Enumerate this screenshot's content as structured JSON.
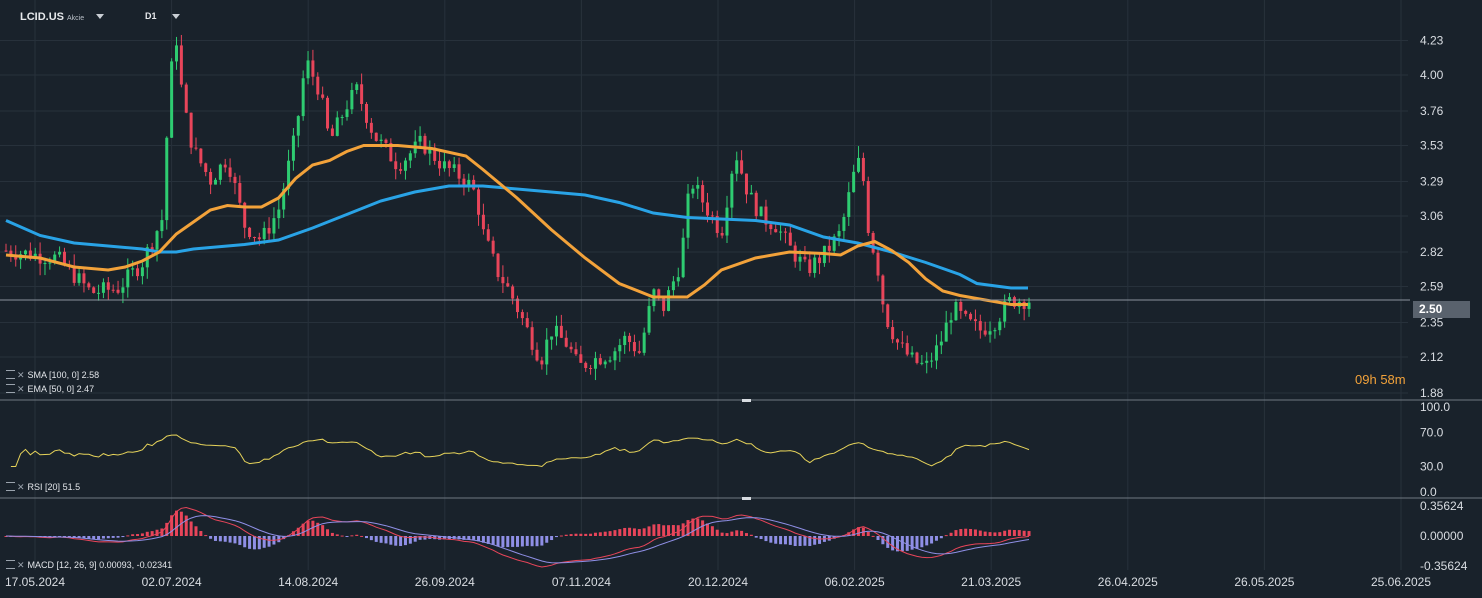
{
  "header": {
    "symbol": "LCID.US",
    "instrument_type": "Akcie",
    "timeframe": "D1"
  },
  "price_panel": {
    "y_ticks": [
      "4.23",
      "4.00",
      "3.76",
      "3.53",
      "3.29",
      "3.06",
      "2.82",
      "2.59",
      "2.35",
      "2.12",
      "1.88"
    ],
    "current_price": "2.50",
    "countdown_hours": "09",
    "countdown_h_unit": "h",
    "countdown_minutes": "58",
    "countdown_m_unit": "m",
    "indicators": [
      {
        "label": "SMA [100, 0] 2.58",
        "color": "#29a3e6"
      },
      {
        "label": "EMA [50, 0] 2.47",
        "color": "#f2a23a"
      }
    ]
  },
  "rsi_panel": {
    "label": "RSI [20] 51.5",
    "y_ticks": [
      "100.0",
      "70.0",
      "30.0",
      "0.0"
    ],
    "color": "#e6d35a"
  },
  "macd_panel": {
    "label": "MACD [12, 26, 9] 0.00093, -0.02341",
    "y_ticks": [
      "0.35624",
      "0.00000",
      "-0.35624"
    ]
  },
  "x_axis": {
    "ticks": [
      "17.05.2024",
      "02.07.2024",
      "14.08.2024",
      "26.09.2024",
      "07.11.2024",
      "20.12.2024",
      "06.02.2025",
      "21.03.2025",
      "26.04.2025",
      "26.05.2025",
      "25.06.2025"
    ]
  },
  "colors": {
    "background": "#19222b",
    "bull": "#2ecc71",
    "bear": "#e8455a",
    "sma": "#29a3e6",
    "ema": "#f2a23a",
    "rsi": "#e6d35a",
    "macd_line": "#e8455a",
    "signal_line": "#8f8fe6",
    "hist_pos": "#e8455a",
    "hist_neg": "#8f8fe6"
  },
  "chart_data": {
    "type": "candlestick",
    "price_range": [
      1.88,
      4.32
    ],
    "rsi_range": [
      0,
      100
    ],
    "macd_range": [
      -0.4,
      0.4
    ],
    "current_price": 2.5,
    "sma_100": [
      [
        0,
        3.03
      ],
      [
        10,
        2.93
      ],
      [
        20,
        2.88
      ],
      [
        30,
        2.86
      ],
      [
        40,
        2.84
      ],
      [
        45,
        2.82
      ],
      [
        50,
        2.82
      ],
      [
        55,
        2.84
      ],
      [
        60,
        2.85
      ],
      [
        70,
        2.87
      ],
      [
        80,
        2.9
      ],
      [
        90,
        2.98
      ],
      [
        100,
        3.07
      ],
      [
        110,
        3.16
      ],
      [
        120,
        3.22
      ],
      [
        130,
        3.26
      ],
      [
        140,
        3.26
      ],
      [
        150,
        3.24
      ],
      [
        160,
        3.22
      ],
      [
        170,
        3.2
      ],
      [
        180,
        3.15
      ],
      [
        190,
        3.08
      ],
      [
        200,
        3.05
      ],
      [
        210,
        3.04
      ],
      [
        220,
        3.03
      ],
      [
        230,
        3.0
      ],
      [
        240,
        2.92
      ],
      [
        250,
        2.88
      ],
      [
        260,
        2.82
      ],
      [
        270,
        2.75
      ],
      [
        280,
        2.67
      ],
      [
        285,
        2.61
      ],
      [
        295,
        2.58
      ],
      [
        300,
        2.58
      ]
    ],
    "ema_50": [
      [
        0,
        2.8
      ],
      [
        10,
        2.78
      ],
      [
        20,
        2.72
      ],
      [
        30,
        2.7
      ],
      [
        35,
        2.72
      ],
      [
        40,
        2.76
      ],
      [
        45,
        2.82
      ],
      [
        50,
        2.94
      ],
      [
        55,
        3.02
      ],
      [
        60,
        3.1
      ],
      [
        65,
        3.13
      ],
      [
        70,
        3.12
      ],
      [
        75,
        3.12
      ],
      [
        80,
        3.18
      ],
      [
        85,
        3.31
      ],
      [
        90,
        3.4
      ],
      [
        95,
        3.43
      ],
      [
        100,
        3.49
      ],
      [
        105,
        3.53
      ],
      [
        115,
        3.53
      ],
      [
        125,
        3.51
      ],
      [
        135,
        3.46
      ],
      [
        140,
        3.37
      ],
      [
        150,
        3.18
      ],
      [
        160,
        2.97
      ],
      [
        170,
        2.78
      ],
      [
        180,
        2.61
      ],
      [
        190,
        2.52
      ],
      [
        195,
        2.52
      ],
      [
        200,
        2.52
      ],
      [
        205,
        2.6
      ],
      [
        210,
        2.7
      ],
      [
        220,
        2.78
      ],
      [
        230,
        2.82
      ],
      [
        240,
        2.81
      ],
      [
        245,
        2.8
      ],
      [
        250,
        2.86
      ],
      [
        255,
        2.89
      ],
      [
        260,
        2.83
      ],
      [
        265,
        2.75
      ],
      [
        270,
        2.64
      ],
      [
        275,
        2.56
      ],
      [
        280,
        2.53
      ],
      [
        285,
        2.51
      ],
      [
        295,
        2.47
      ],
      [
        300,
        2.47
      ]
    ],
    "candles_note": "daily OHLC from 17.05.2024 to 21.03.2025, approximated path",
    "price_path": [
      [
        0,
        2.83
      ],
      [
        15,
        2.78
      ],
      [
        25,
        2.55
      ],
      [
        33,
        2.58
      ],
      [
        40,
        2.75
      ],
      [
        46,
        3.05
      ],
      [
        48,
        3.95
      ],
      [
        50,
        4.25
      ],
      [
        52,
        3.8
      ],
      [
        55,
        3.5
      ],
      [
        60,
        3.3
      ],
      [
        65,
        3.45
      ],
      [
        70,
        3.0
      ],
      [
        75,
        2.9
      ],
      [
        80,
        3.1
      ],
      [
        85,
        3.6
      ],
      [
        88,
        4.1
      ],
      [
        92,
        3.9
      ],
      [
        95,
        3.55
      ],
      [
        100,
        3.8
      ],
      [
        103,
        3.9
      ],
      [
        108,
        3.6
      ],
      [
        115,
        3.4
      ],
      [
        122,
        3.55
      ],
      [
        128,
        3.4
      ],
      [
        135,
        3.3
      ],
      [
        138,
        3.2
      ],
      [
        140,
        2.95
      ],
      [
        144,
        2.7
      ],
      [
        148,
        2.55
      ],
      [
        152,
        2.35
      ],
      [
        157,
        2.1
      ],
      [
        160,
        2.3
      ],
      [
        165,
        2.2
      ],
      [
        168,
        2.05
      ],
      [
        172,
        2.1
      ],
      [
        178,
        2.15
      ],
      [
        182,
        2.25
      ],
      [
        186,
        2.15
      ],
      [
        188,
        2.35
      ],
      [
        190,
        2.55
      ],
      [
        193,
        2.45
      ],
      [
        198,
        2.75
      ],
      [
        201,
        3.3
      ],
      [
        206,
        3.1
      ],
      [
        210,
        2.95
      ],
      [
        214,
        3.5
      ],
      [
        218,
        3.2
      ],
      [
        222,
        3.05
      ],
      [
        226,
        3.0
      ],
      [
        230,
        2.85
      ],
      [
        235,
        2.7
      ],
      [
        240,
        2.8
      ],
      [
        245,
        2.95
      ],
      [
        249,
        3.35
      ],
      [
        251,
        3.45
      ],
      [
        253,
        3.0
      ],
      [
        256,
        2.7
      ],
      [
        258,
        2.4
      ],
      [
        262,
        2.2
      ],
      [
        266,
        2.1
      ],
      [
        270,
        2.05
      ],
      [
        274,
        2.2
      ],
      [
        278,
        2.45
      ],
      [
        282,
        2.35
      ],
      [
        286,
        2.3
      ],
      [
        290,
        2.35
      ],
      [
        295,
        2.5
      ],
      [
        300,
        2.5
      ]
    ]
  }
}
